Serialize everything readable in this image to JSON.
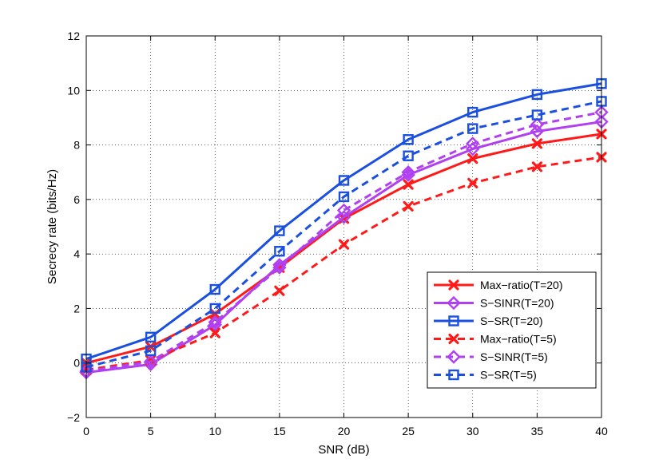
{
  "chart_data": {
    "type": "line",
    "title": "",
    "xlabel": "SNR (dB)",
    "ylabel": "Secrecy rate (bits/Hz)",
    "xlim": [
      0,
      40
    ],
    "ylim": [
      -2,
      12
    ],
    "grid": true,
    "legend_position": "bottom-right",
    "x": [
      0,
      5,
      10,
      15,
      20,
      25,
      30,
      35,
      40
    ],
    "xticks": [
      "0",
      "5",
      "10",
      "15",
      "20",
      "25",
      "30",
      "35",
      "40"
    ],
    "yticks": [
      "−2",
      "0",
      "2",
      "4",
      "6",
      "8",
      "10",
      "12"
    ],
    "ytick_values": [
      -2,
      0,
      2,
      4,
      6,
      8,
      10,
      12
    ],
    "series": [
      {
        "name": "Max−ratio(T=20)",
        "color": "#ff1a1a",
        "dash": "solid",
        "marker": "x",
        "values": [
          0.0,
          0.6,
          1.8,
          3.5,
          5.3,
          6.55,
          7.5,
          8.05,
          8.4
        ]
      },
      {
        "name": "S−SINR(T=20)",
        "color": "#b040f0",
        "dash": "solid",
        "marker": "diamond",
        "values": [
          -0.35,
          -0.05,
          1.4,
          3.6,
          5.35,
          6.9,
          7.85,
          8.5,
          8.85
        ]
      },
      {
        "name": "S−SR(T=20)",
        "color": "#1a4fe0",
        "dash": "solid",
        "marker": "square",
        "values": [
          0.15,
          0.95,
          2.7,
          4.85,
          6.7,
          8.2,
          9.2,
          9.85,
          10.25
        ]
      },
      {
        "name": "Max−ratio(T=5)",
        "color": "#ff1a1a",
        "dash": "dashed",
        "marker": "x",
        "values": [
          -0.25,
          0.1,
          1.1,
          2.65,
          4.35,
          5.75,
          6.6,
          7.2,
          7.55
        ]
      },
      {
        "name": "S−SINR(T=5)",
        "color": "#b040f0",
        "dash": "dashed",
        "marker": "diamond",
        "values": [
          -0.3,
          0.05,
          1.5,
          3.5,
          5.6,
          7.0,
          8.05,
          8.75,
          9.2
        ]
      },
      {
        "name": "S−SR(T=5)",
        "color": "#1a4fe0",
        "dash": "dashed",
        "marker": "square",
        "values": [
          -0.15,
          0.45,
          2.0,
          4.1,
          6.1,
          7.6,
          8.6,
          9.1,
          9.6
        ]
      }
    ]
  }
}
